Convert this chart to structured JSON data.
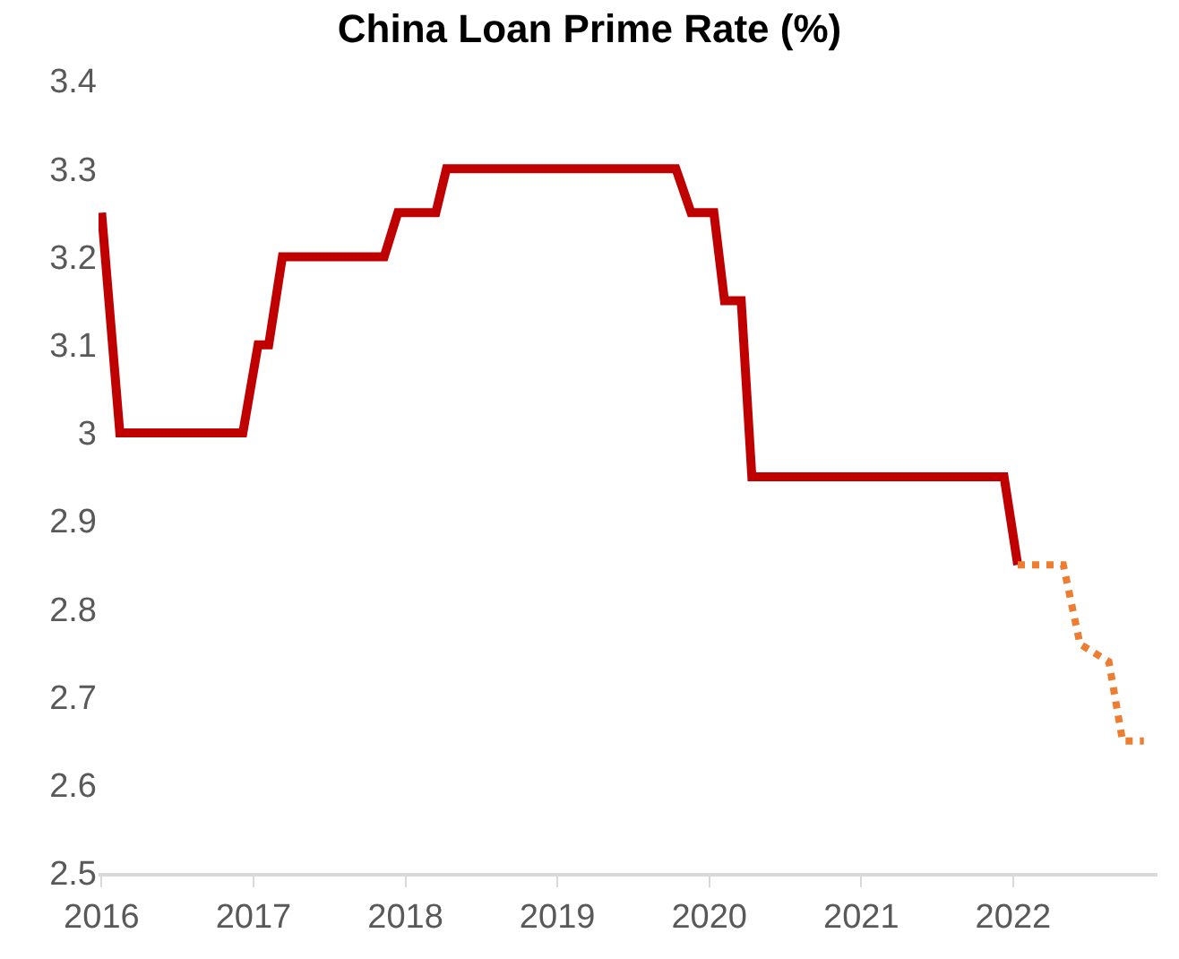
{
  "chart_data": {
    "type": "line",
    "title": "China Loan Prime Rate (%)",
    "series": [
      {
        "color": "#c00000",
        "line_style": "solid",
        "x": [
          2016.0,
          2016.12,
          2016.93,
          2017.03,
          2017.1,
          2017.19,
          2017.86,
          2017.95,
          2018.2,
          2018.27,
          2019.78,
          2019.88,
          2020.03,
          2020.1,
          2020.21,
          2020.28,
          2021.94,
          2022.03
        ],
        "values": [
          3.25,
          3.0,
          3.0,
          3.1,
          3.1,
          3.2,
          3.2,
          3.25,
          3.25,
          3.3,
          3.3,
          3.25,
          3.25,
          3.15,
          3.15,
          2.95,
          2.95,
          2.85
        ]
      },
      {
        "color": "#ed7d31",
        "line_style": "dotted",
        "x": [
          2022.03,
          2022.33,
          2022.44,
          2022.63,
          2022.72,
          2022.86
        ],
        "values": [
          2.85,
          2.85,
          2.76,
          2.74,
          2.65,
          2.65
        ]
      }
    ],
    "xlim": [
      2015.98,
      2022.95
    ],
    "xticks": [
      2016,
      2017,
      2018,
      2019,
      2020,
      2021,
      2022
    ],
    "ylim": [
      2.5,
      3.4
    ],
    "yticks": [
      2.5,
      2.6,
      2.7,
      2.8,
      2.9,
      3,
      3.1,
      3.2,
      3.3,
      3.4
    ],
    "grid": false,
    "marker": "none"
  }
}
